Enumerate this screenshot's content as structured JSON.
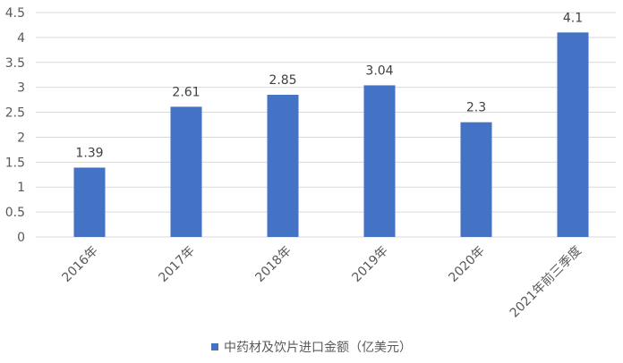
{
  "chart_data": {
    "type": "bar",
    "categories": [
      "2016年",
      "2017年",
      "2018年",
      "2019年",
      "2020年",
      "2021年前三季度"
    ],
    "series": [
      {
        "name": "中药材及饮片进口金额（亿美元）",
        "values": [
          1.39,
          2.61,
          2.85,
          3.04,
          2.3,
          4.1
        ],
        "labels": [
          "1.39",
          "2.61",
          "2.85",
          "3.04",
          "2.3",
          "4.1"
        ]
      }
    ],
    "ylim": [
      0,
      4.5
    ],
    "yticks": [
      "0",
      "0.5",
      "1",
      "1.5",
      "2",
      "2.5",
      "3",
      "3.5",
      "4",
      "4.5"
    ],
    "grid": true,
    "legend_position": "bottom",
    "colors": {
      "bar": "#4472c4",
      "grid": "#d9d9d9",
      "text": "#595959"
    }
  }
}
